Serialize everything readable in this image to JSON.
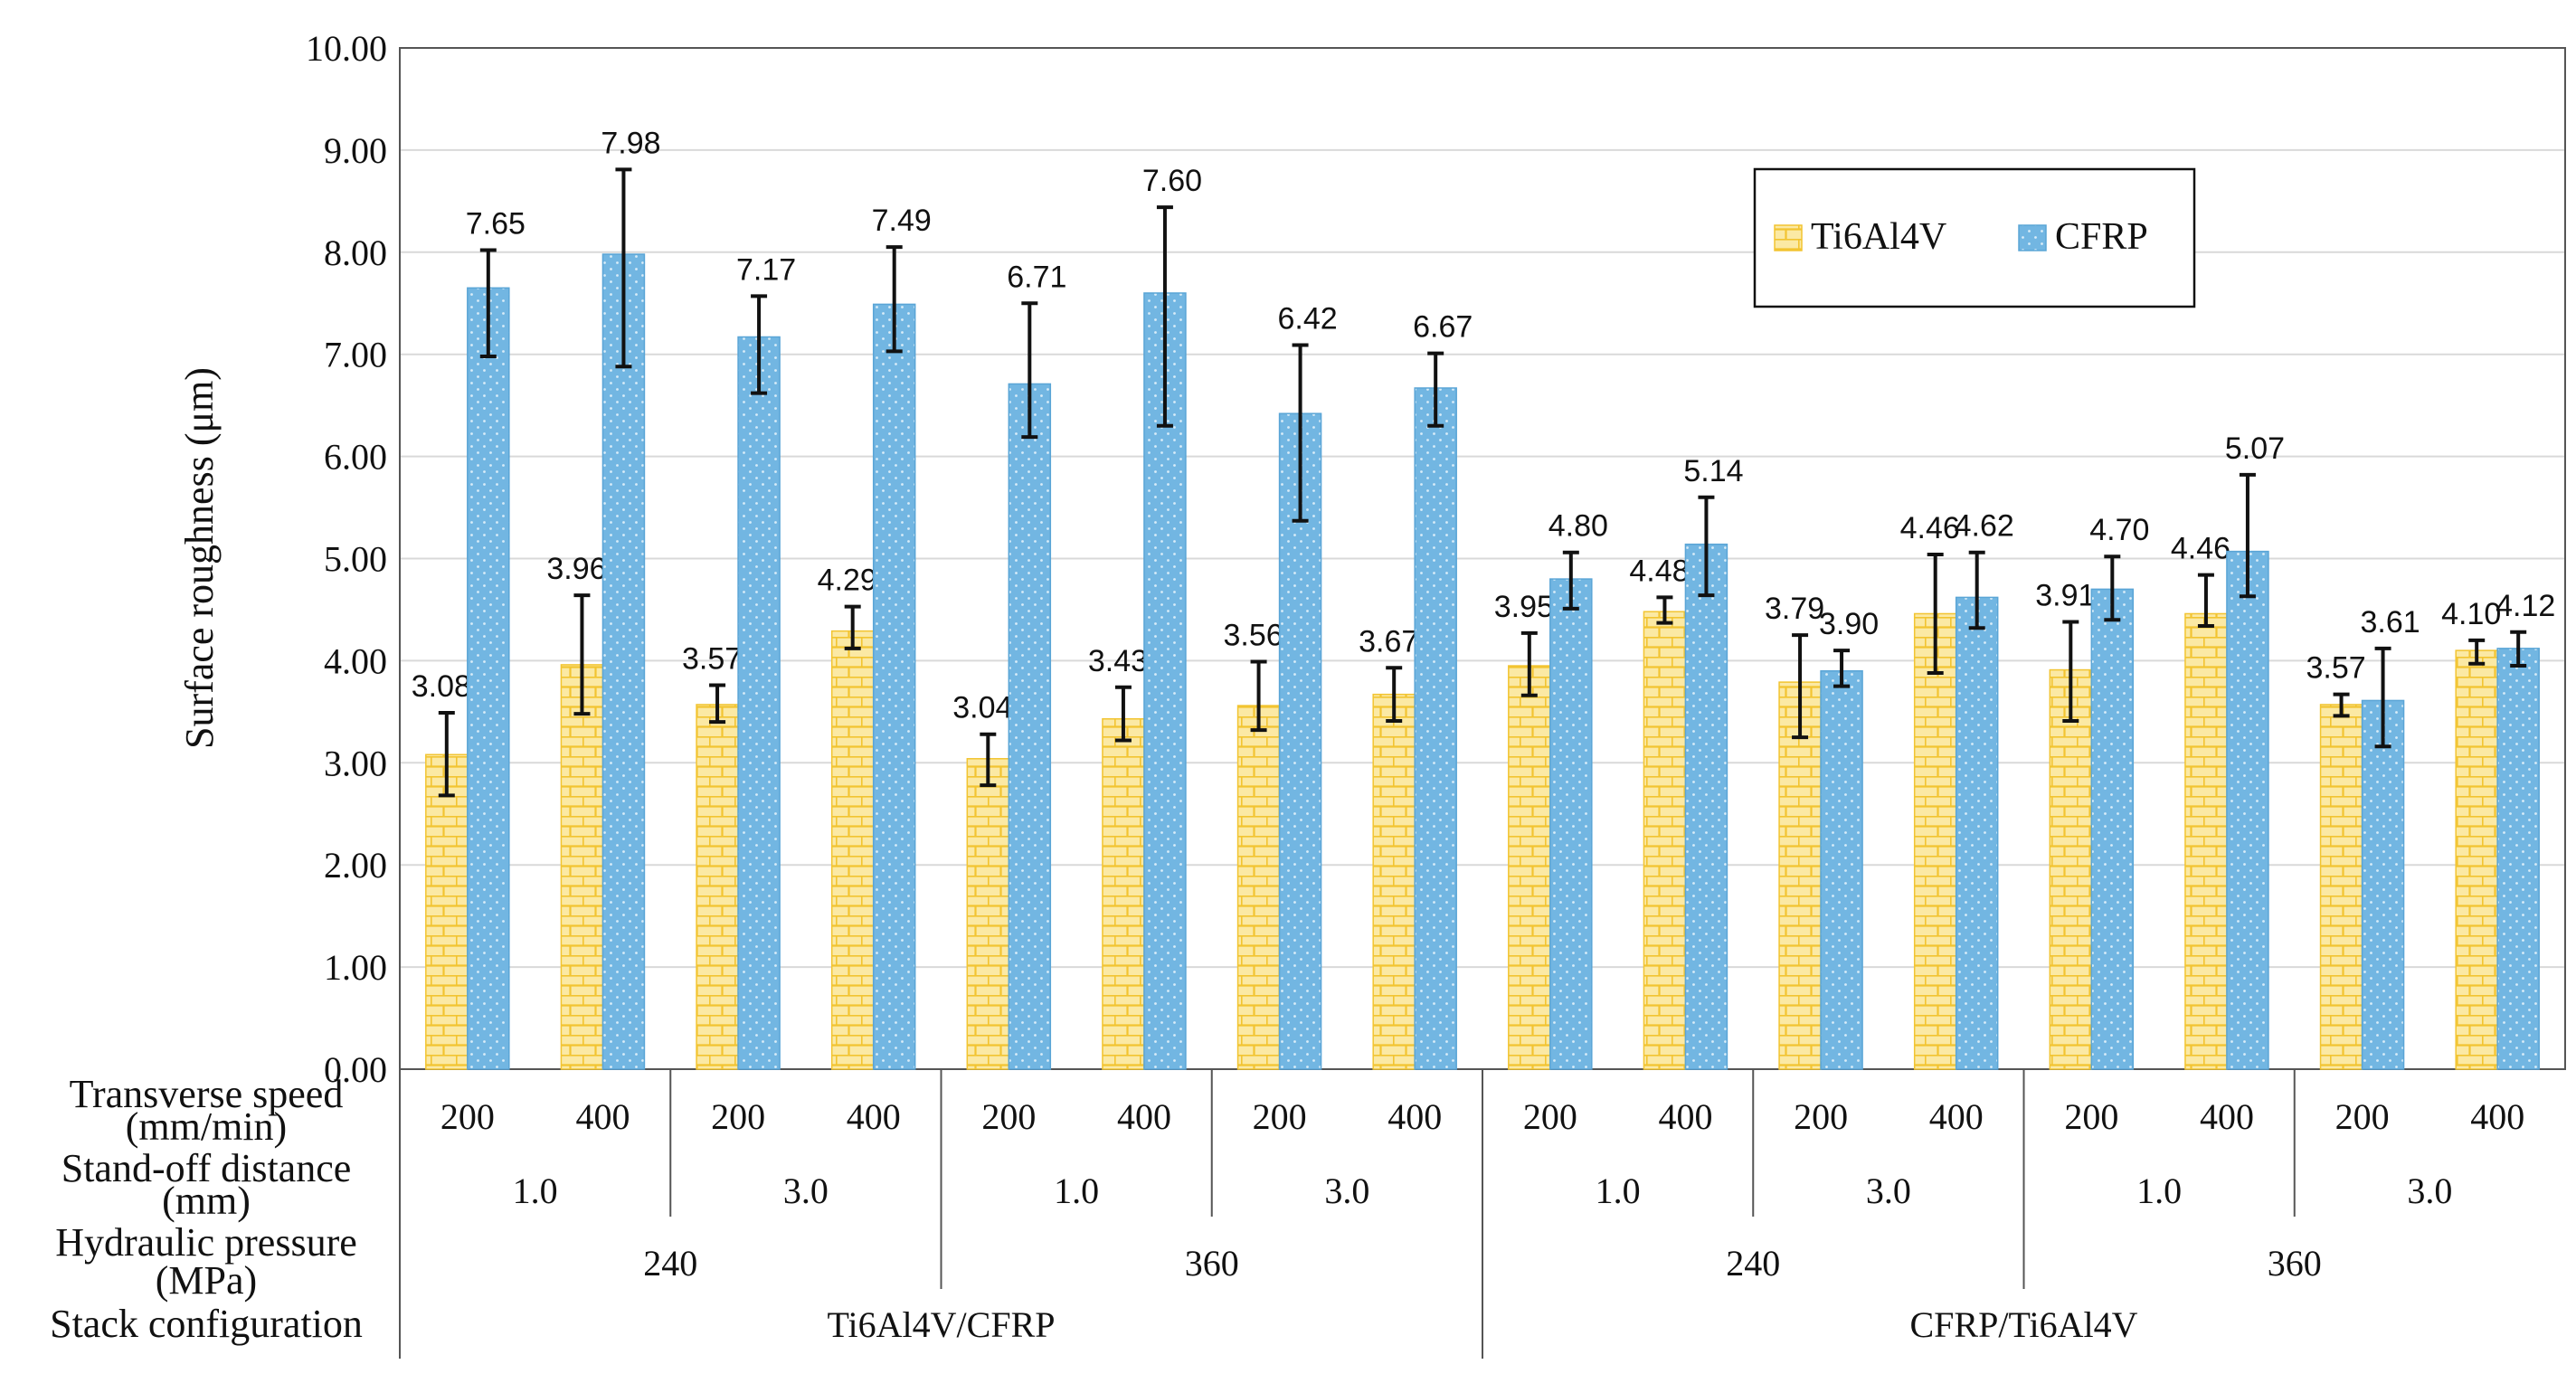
{
  "chart_data": {
    "type": "bar",
    "ylabel": "Surface roughness (μm)",
    "ylim": [
      0,
      10
    ],
    "yticks": [
      "0.00",
      "1.00",
      "2.00",
      "3.00",
      "4.00",
      "5.00",
      "6.00",
      "7.00",
      "8.00",
      "9.00",
      "10.00"
    ],
    "grid": true,
    "legend_position": "top-right",
    "categories": [
      "200",
      "400",
      "200",
      "400",
      "200",
      "400",
      "200",
      "400",
      "200",
      "400",
      "200",
      "400",
      "200",
      "400",
      "200",
      "400"
    ],
    "series": [
      {
        "name": "Ti6Al4V",
        "color": "#f5d24f",
        "pattern": "brick",
        "values": [
          3.08,
          3.96,
          3.57,
          4.29,
          3.04,
          3.43,
          3.56,
          3.67,
          3.95,
          4.48,
          3.79,
          4.46,
          3.91,
          4.46,
          3.57,
          4.1
        ],
        "labels": [
          "3.08",
          "3.96",
          "3.57",
          "4.29",
          "3.04",
          "3.43",
          "3.56",
          "3.67",
          "3.95",
          "4.48",
          "3.79",
          "4.46",
          "3.91",
          "4.46",
          "3.57",
          "4.10"
        ],
        "err_low": [
          2.68,
          3.48,
          3.4,
          4.12,
          2.78,
          3.22,
          3.32,
          3.41,
          3.66,
          4.37,
          3.25,
          3.88,
          3.41,
          4.34,
          3.46,
          3.97
        ],
        "err_high": [
          3.49,
          4.64,
          3.76,
          4.53,
          3.28,
          3.74,
          3.99,
          3.93,
          4.27,
          4.62,
          4.25,
          5.04,
          4.38,
          4.84,
          3.67,
          4.2
        ]
      },
      {
        "name": "CFRP",
        "color": "#6fb3e0",
        "pattern": "dots",
        "values": [
          7.65,
          7.98,
          7.17,
          7.49,
          6.71,
          7.6,
          6.42,
          6.67,
          4.8,
          5.14,
          3.9,
          4.62,
          4.7,
          5.07,
          3.61,
          4.12
        ],
        "labels": [
          "7.65",
          "7.98",
          "7.17",
          "7.49",
          "6.71",
          "7.60",
          "6.42",
          "6.67",
          "4.80",
          "5.14",
          "3.90",
          "4.62",
          "4.70",
          "5.07",
          "3.61",
          "4.12"
        ],
        "err_low": [
          6.98,
          6.88,
          6.62,
          7.03,
          6.19,
          6.3,
          5.37,
          6.3,
          4.51,
          4.64,
          3.75,
          4.32,
          4.4,
          4.63,
          3.16,
          3.95
        ],
        "err_high": [
          8.02,
          8.81,
          7.57,
          8.05,
          7.5,
          8.44,
          7.09,
          7.01,
          5.06,
          5.6,
          4.1,
          5.06,
          5.02,
          5.82,
          4.12,
          4.28
        ]
      }
    ],
    "table": {
      "rows": [
        {
          "label_lines": [
            "Transverse speed",
            "(mm/min)"
          ],
          "cells": [
            "200",
            "400",
            "200",
            "400",
            "200",
            "400",
            "200",
            "400",
            "200",
            "400",
            "200",
            "400",
            "200",
            "400",
            "200",
            "400"
          ]
        },
        {
          "label_lines": [
            "Stand-off distance",
            "(mm)"
          ],
          "cells": [
            "1.0",
            "3.0",
            "1.0",
            "3.0",
            "1.0",
            "3.0",
            "1.0",
            "3.0"
          ]
        },
        {
          "label_lines": [
            "Hydraulic pressure",
            "(MPa)"
          ],
          "cells": [
            "240",
            "360",
            "240",
            "360"
          ]
        },
        {
          "label_lines": [
            "Stack configuration"
          ],
          "cells": [
            "Ti6Al4V/CFRP",
            "CFRP/Ti6Al4V"
          ]
        }
      ]
    }
  }
}
